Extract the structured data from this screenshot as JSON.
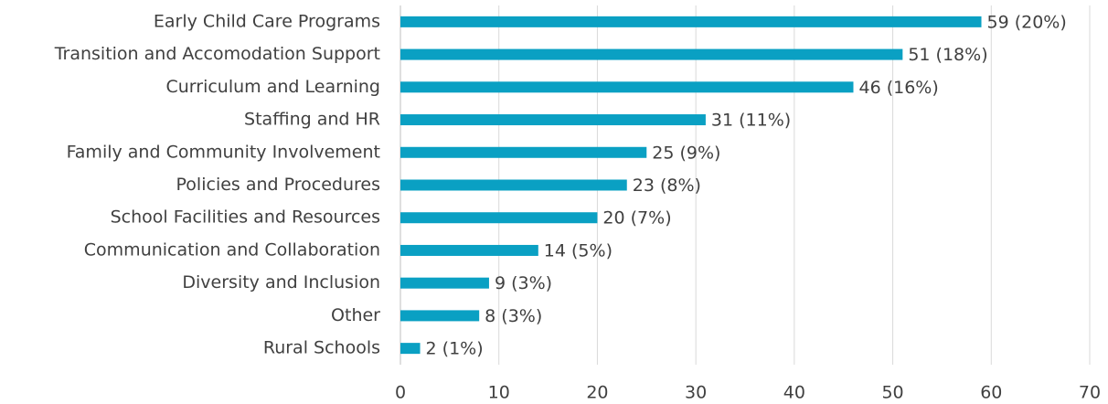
{
  "chart_data": {
    "type": "bar",
    "orientation": "horizontal",
    "categories": [
      "Early Child Care Programs",
      "Transition and Accomodation Support",
      "Curriculum and Learning",
      "Staffing and HR",
      "Family and Community Involvement",
      "Policies and Procedures",
      "School Facilities and Resources",
      "Communication and Collaboration",
      "Diversity and Inclusion",
      "Other",
      "Rural Schools"
    ],
    "values": [
      59,
      51,
      46,
      31,
      25,
      23,
      20,
      14,
      9,
      8,
      2
    ],
    "value_labels": [
      "59 (20%)",
      "51 (18%)",
      "46 (16%)",
      "31 (11%)",
      "25 (9%)",
      "23 (8%)",
      "20 (7%)",
      "14 (5%)",
      "9 (3%)",
      "8 (3%)",
      "2 (1%)"
    ],
    "color": "#0aa0c3",
    "xlim": [
      0,
      70
    ],
    "xticks": [
      0,
      10,
      20,
      30,
      40,
      50,
      60,
      70
    ],
    "grid": true
  }
}
